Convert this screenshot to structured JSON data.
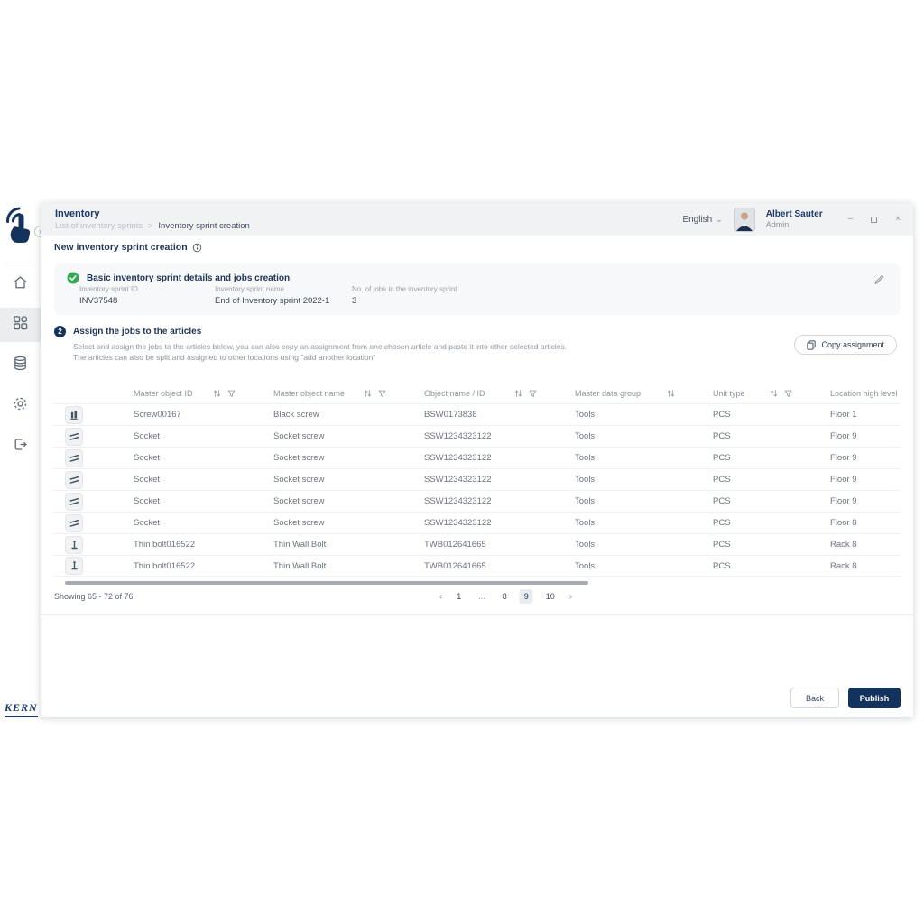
{
  "colors": {
    "brand_navy": "#14335c",
    "success_green": "#34a853"
  },
  "sidebar": {
    "brand": "KERN",
    "items": [
      {
        "icon": "home-icon",
        "active": false
      },
      {
        "icon": "modules-icon",
        "active": true
      },
      {
        "icon": "database-icon",
        "active": false
      },
      {
        "icon": "settings-icon",
        "active": false
      },
      {
        "icon": "logout-icon",
        "active": false
      }
    ]
  },
  "header": {
    "title": "Inventory",
    "breadcrumb_parent": "List of inventory sprints",
    "breadcrumb_sep": ">",
    "breadcrumb_current": "Inventory sprint creation",
    "language": "English",
    "user": {
      "name": "Albert Sauter",
      "role": "Admin"
    }
  },
  "page": {
    "title": "New inventory sprint creation"
  },
  "section1": {
    "title": "Basic inventory sprint details and jobs creation",
    "fields": [
      {
        "label": "Inventory sprint ID",
        "value": "INV37548"
      },
      {
        "label": "Inventory sprint name",
        "value": "End of Inventory sprint 2022-1"
      },
      {
        "label": "No. of jobs in the inventory sprint",
        "value": "3"
      }
    ]
  },
  "section2": {
    "step": "2",
    "title": "Assign the jobs to the articles",
    "description": "Select and assign the jobs to the articles below, you can also copy an assignment from one chosen article and paste it into other selected articles. The articles can also be split and assigned to other locations using \"add another location\"",
    "copy_button": "Copy assignment"
  },
  "table": {
    "columns": [
      {
        "label": "Master object ID",
        "sort": true,
        "filter": true
      },
      {
        "label": "Master object name",
        "sort": true,
        "filter": true
      },
      {
        "label": "Object name / ID",
        "sort": true,
        "filter": true
      },
      {
        "label": "Master data group",
        "sort": true,
        "filter": false
      },
      {
        "label": "Unit type",
        "sort": true,
        "filter": true
      },
      {
        "label": "Location high level",
        "sort": false,
        "filter": false
      }
    ],
    "rows": [
      {
        "icon": "screw-icon",
        "id": "Screw00167",
        "name": "Black screw",
        "object_id": "BSW0173838",
        "group": "Tools",
        "unit": "PCS",
        "location": "Floor 1"
      },
      {
        "icon": "socket-icon",
        "id": "Socket",
        "name": "Socket screw",
        "object_id": "SSW1234323122",
        "group": "Tools",
        "unit": "PCS",
        "location": "Floor 9"
      },
      {
        "icon": "socket-icon",
        "id": "Socket",
        "name": "Socket screw",
        "object_id": "SSW1234323122",
        "group": "Tools",
        "unit": "PCS",
        "location": "Floor 9"
      },
      {
        "icon": "socket-icon",
        "id": "Socket",
        "name": "Socket screw",
        "object_id": "SSW1234323122",
        "group": "Tools",
        "unit": "PCS",
        "location": "Floor 9"
      },
      {
        "icon": "socket-icon",
        "id": "Socket",
        "name": "Socket screw",
        "object_id": "SSW1234323122",
        "group": "Tools",
        "unit": "PCS",
        "location": "Floor 9"
      },
      {
        "icon": "socket-icon",
        "id": "Socket",
        "name": "Socket screw",
        "object_id": "SSW1234323122",
        "group": "Tools",
        "unit": "PCS",
        "location": "Floor 8"
      },
      {
        "icon": "bolt-icon",
        "id": "Thin bolt016522",
        "name": "Thin Wall Bolt",
        "object_id": "TWB012641665",
        "group": "Tools",
        "unit": "PCS",
        "location": "Rack 8"
      },
      {
        "icon": "bolt-icon",
        "id": "Thin bolt016522",
        "name": "Thin Wall Bolt",
        "object_id": "TWB012641665",
        "group": "Tools",
        "unit": "PCS",
        "location": "Rack 8"
      }
    ]
  },
  "pagination": {
    "showing": "Showing 65 - 72 of 76",
    "prev": "‹",
    "next": "›",
    "pages": [
      {
        "label": "1",
        "active": false,
        "ellipsis": false
      },
      {
        "label": "...",
        "active": false,
        "ellipsis": true
      },
      {
        "label": "8",
        "active": false,
        "ellipsis": false
      },
      {
        "label": "9",
        "active": true,
        "ellipsis": false
      },
      {
        "label": "10",
        "active": false,
        "ellipsis": false
      }
    ]
  },
  "footer": {
    "back": "Back",
    "publish": "Publish"
  }
}
